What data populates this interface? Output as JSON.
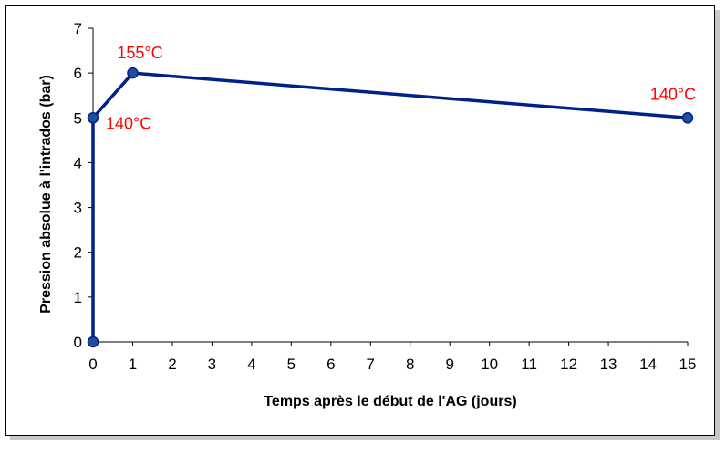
{
  "chart_data": {
    "type": "line",
    "title": "",
    "xlabel": "Temps après le début de l'AG (jours)",
    "ylabel": "Pression absolue à l'intrados (bar)",
    "xlim": [
      0,
      15
    ],
    "ylim": [
      0,
      7
    ],
    "xticks": [
      "0",
      "1",
      "2",
      "3",
      "4",
      "5",
      "6",
      "7",
      "8",
      "9",
      "10",
      "11",
      "12",
      "13",
      "14",
      "15"
    ],
    "yticks": [
      "0",
      "1",
      "2",
      "3",
      "4",
      "5",
      "6",
      "7"
    ],
    "grid": false,
    "legend": "none",
    "series": [
      {
        "color": "#002288",
        "marker_color": "#1f4e9e",
        "x": [
          0,
          0,
          1,
          15
        ],
        "y": [
          0,
          5,
          6,
          5
        ]
      }
    ],
    "annotations": [
      {
        "text": "140°C",
        "x": 0,
        "y": 5,
        "color": "#ff0000"
      },
      {
        "text": "155°C",
        "x": 1,
        "y": 6,
        "color": "#ff0000"
      },
      {
        "text": "140°C",
        "x": 15,
        "y": 5,
        "color": "#ff0000"
      }
    ]
  }
}
